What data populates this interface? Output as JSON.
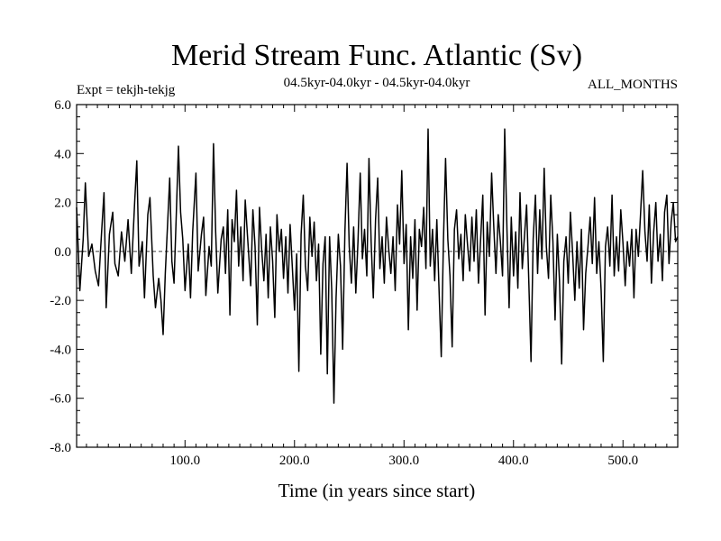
{
  "chart_data": {
    "type": "line",
    "title": "Merid Stream Func. Atlantic (Sv)",
    "subtitle": "04.5kyr-04.0kyr - 04.5kyr-04.0kyr",
    "annotations": {
      "left": "Expt = tekjh-tekjg",
      "right": "ALL_MONTHS"
    },
    "xlabel": "Time (in years since start)",
    "ylabel": "",
    "xlim": [
      1,
      550
    ],
    "ylim": [
      -8.0,
      6.0
    ],
    "x_ticks": [
      100,
      200,
      300,
      400,
      500
    ],
    "x_tick_labels": [
      "100.0",
      "200.0",
      "300.0",
      "400.0",
      "500.0"
    ],
    "y_ticks": [
      -8,
      -6,
      -4,
      -2,
      0,
      2,
      4,
      6
    ],
    "y_tick_labels": [
      "-8.0",
      "-6.0",
      "-4.0",
      "-2.0",
      "0.0",
      "2.0",
      "4.0",
      "6.0"
    ],
    "zero_line": "dashed",
    "grid": false,
    "legend": "none",
    "series": [
      {
        "color": "#000000",
        "points": [
          [
            1,
            1.8
          ],
          [
            4,
            -1.6
          ],
          [
            7,
            0.5
          ],
          [
            9,
            2.8
          ],
          [
            12,
            -0.2
          ],
          [
            15,
            0.3
          ],
          [
            18,
            -0.8
          ],
          [
            21,
            -1.4
          ],
          [
            24,
            0.9
          ],
          [
            26,
            2.4
          ],
          [
            28,
            -2.3
          ],
          [
            31,
            0.7
          ],
          [
            34,
            1.6
          ],
          [
            36,
            -0.5
          ],
          [
            39,
            -1.0
          ],
          [
            42,
            0.8
          ],
          [
            45,
            -0.4
          ],
          [
            48,
            1.3
          ],
          [
            51,
            -0.9
          ],
          [
            54,
            2.0
          ],
          [
            56,
            3.7
          ],
          [
            58,
            -0.6
          ],
          [
            61,
            0.4
          ],
          [
            63,
            -1.9
          ],
          [
            66,
            1.5
          ],
          [
            68,
            2.2
          ],
          [
            71,
            -1.0
          ],
          [
            73,
            -2.3
          ],
          [
            76,
            -1.1
          ],
          [
            78,
            -2.0
          ],
          [
            80,
            -3.4
          ],
          [
            82,
            -0.9
          ],
          [
            84,
            1.0
          ],
          [
            86,
            3.0
          ],
          [
            88,
            -0.4
          ],
          [
            90,
            -1.3
          ],
          [
            92,
            1.5
          ],
          [
            94,
            4.3
          ],
          [
            96,
            1.6
          ],
          [
            98,
            0.5
          ],
          [
            100,
            -1.6
          ],
          [
            103,
            0.3
          ],
          [
            105,
            -1.9
          ],
          [
            107,
            0.8
          ],
          [
            110,
            3.2
          ],
          [
            112,
            -0.8
          ],
          [
            115,
            0.7
          ],
          [
            117,
            1.4
          ],
          [
            119,
            -1.8
          ],
          [
            122,
            0.2
          ],
          [
            124,
            -0.6
          ],
          [
            126,
            4.4
          ],
          [
            128,
            0.8
          ],
          [
            130,
            -1.7
          ],
          [
            133,
            0.5
          ],
          [
            135,
            1.0
          ],
          [
            137,
            -0.9
          ],
          [
            139,
            1.7
          ],
          [
            141,
            -2.6
          ],
          [
            143,
            1.3
          ],
          [
            145,
            0.4
          ],
          [
            147,
            2.5
          ],
          [
            149,
            -0.6
          ],
          [
            151,
            1.0
          ],
          [
            153,
            -1.2
          ],
          [
            155,
            2.1
          ],
          [
            157,
            0.7
          ],
          [
            160,
            -1.4
          ],
          [
            162,
            1.7
          ],
          [
            164,
            0.2
          ],
          [
            166,
            -3.0
          ],
          [
            168,
            1.8
          ],
          [
            170,
            0.1
          ],
          [
            172,
            -1.2
          ],
          [
            174,
            0.7
          ],
          [
            176,
            -1.9
          ],
          [
            178,
            1.0
          ],
          [
            180,
            -0.4
          ],
          [
            182,
            -2.7
          ],
          [
            184,
            1.5
          ],
          [
            186,
            0.0
          ],
          [
            188,
            0.9
          ],
          [
            190,
            -1.1
          ],
          [
            192,
            0.6
          ],
          [
            194,
            -1.7
          ],
          [
            196,
            1.1
          ],
          [
            198,
            -0.6
          ],
          [
            200,
            -2.4
          ],
          [
            202,
            -0.1
          ],
          [
            204,
            -4.9
          ],
          [
            206,
            0.7
          ],
          [
            208,
            2.3
          ],
          [
            210,
            -0.6
          ],
          [
            212,
            -1.6
          ],
          [
            214,
            1.4
          ],
          [
            216,
            -0.2
          ],
          [
            218,
            1.2
          ],
          [
            220,
            -1.2
          ],
          [
            222,
            0.3
          ],
          [
            224,
            -4.2
          ],
          [
            226,
            -0.5
          ],
          [
            228,
            0.6
          ],
          [
            230,
            -5.0
          ],
          [
            232,
            0.6
          ],
          [
            234,
            -1.6
          ],
          [
            236,
            -6.2
          ],
          [
            238,
            -1.9
          ],
          [
            240,
            0.7
          ],
          [
            242,
            -0.6
          ],
          [
            244,
            -4.0
          ],
          [
            246,
            0.8
          ],
          [
            248,
            3.6
          ],
          [
            250,
            0.2
          ],
          [
            252,
            -1.3
          ],
          [
            254,
            1.0
          ],
          [
            256,
            -1.7
          ],
          [
            258,
            0.4
          ],
          [
            260,
            3.2
          ],
          [
            262,
            -0.3
          ],
          [
            264,
            0.9
          ],
          [
            266,
            -1.0
          ],
          [
            268,
            3.8
          ],
          [
            270,
            0.4
          ],
          [
            272,
            -1.9
          ],
          [
            274,
            1.3
          ],
          [
            276,
            3.0
          ],
          [
            278,
            -0.7
          ],
          [
            280,
            0.6
          ],
          [
            282,
            -1.3
          ],
          [
            284,
            1.4
          ],
          [
            286,
            0.1
          ],
          [
            288,
            -0.9
          ],
          [
            290,
            0.6
          ],
          [
            292,
            -1.6
          ],
          [
            294,
            1.9
          ],
          [
            296,
            0.3
          ],
          [
            298,
            3.3
          ],
          [
            300,
            -0.5
          ],
          [
            302,
            1.1
          ],
          [
            304,
            -3.2
          ],
          [
            306,
            0.6
          ],
          [
            308,
            -1.1
          ],
          [
            310,
            1.3
          ],
          [
            312,
            -2.4
          ],
          [
            314,
            0.9
          ],
          [
            316,
            0.2
          ],
          [
            318,
            1.8
          ],
          [
            320,
            -0.7
          ],
          [
            322,
            5.0
          ],
          [
            324,
            -0.6
          ],
          [
            326,
            0.9
          ],
          [
            328,
            -1.2
          ],
          [
            330,
            1.3
          ],
          [
            332,
            -1.5
          ],
          [
            334,
            -4.3
          ],
          [
            336,
            0.4
          ],
          [
            338,
            3.8
          ],
          [
            340,
            0.5
          ],
          [
            342,
            -1.0
          ],
          [
            344,
            -3.9
          ],
          [
            346,
            0.9
          ],
          [
            348,
            1.7
          ],
          [
            350,
            -0.3
          ],
          [
            352,
            0.7
          ],
          [
            354,
            -1.2
          ],
          [
            356,
            1.5
          ],
          [
            358,
            0.3
          ],
          [
            360,
            -0.8
          ],
          [
            362,
            1.4
          ],
          [
            364,
            -0.4
          ],
          [
            366,
            1.7
          ],
          [
            368,
            -1.3
          ],
          [
            370,
            0.5
          ],
          [
            372,
            2.3
          ],
          [
            374,
            -2.6
          ],
          [
            376,
            1.2
          ],
          [
            378,
            -0.2
          ],
          [
            380,
            3.2
          ],
          [
            382,
            1.0
          ],
          [
            384,
            -0.9
          ],
          [
            386,
            1.5
          ],
          [
            388,
            0.4
          ],
          [
            390,
            -1.0
          ],
          [
            392,
            5.0
          ],
          [
            394,
            0.9
          ],
          [
            396,
            -2.3
          ],
          [
            398,
            1.4
          ],
          [
            400,
            -1.0
          ],
          [
            402,
            0.8
          ],
          [
            404,
            -1.5
          ],
          [
            406,
            2.4
          ],
          [
            408,
            -0.7
          ],
          [
            410,
            0.6
          ],
          [
            412,
            1.9
          ],
          [
            414,
            -1.3
          ],
          [
            416,
            -4.5
          ],
          [
            418,
            0.5
          ],
          [
            420,
            2.3
          ],
          [
            422,
            -0.9
          ],
          [
            424,
            1.7
          ],
          [
            426,
            -0.3
          ],
          [
            428,
            3.4
          ],
          [
            430,
            0.2
          ],
          [
            432,
            -1.1
          ],
          [
            434,
            2.3
          ],
          [
            436,
            0.4
          ],
          [
            438,
            -2.8
          ],
          [
            440,
            0.7
          ],
          [
            442,
            -1.2
          ],
          [
            444,
            -4.6
          ],
          [
            446,
            -0.4
          ],
          [
            448,
            0.6
          ],
          [
            450,
            -1.3
          ],
          [
            452,
            1.6
          ],
          [
            454,
            -0.1
          ],
          [
            456,
            -2.0
          ],
          [
            458,
            0.4
          ],
          [
            460,
            -1.5
          ],
          [
            462,
            0.9
          ],
          [
            464,
            -3.2
          ],
          [
            466,
            -0.9
          ],
          [
            468,
            0.2
          ],
          [
            470,
            1.4
          ],
          [
            472,
            -0.5
          ],
          [
            474,
            2.2
          ],
          [
            476,
            -0.9
          ],
          [
            478,
            0.4
          ],
          [
            480,
            -1.6
          ],
          [
            482,
            -4.5
          ],
          [
            484,
            0.2
          ],
          [
            486,
            1.0
          ],
          [
            488,
            -0.6
          ],
          [
            490,
            2.3
          ],
          [
            492,
            -1.0
          ],
          [
            494,
            0.6
          ],
          [
            496,
            -0.8
          ],
          [
            498,
            1.7
          ],
          [
            500,
            0.3
          ],
          [
            502,
            -1.4
          ],
          [
            504,
            0.4
          ],
          [
            506,
            -0.6
          ],
          [
            508,
            0.9
          ],
          [
            510,
            -1.9
          ],
          [
            512,
            0.9
          ],
          [
            514,
            -0.2
          ],
          [
            516,
            1.5
          ],
          [
            518,
            3.3
          ],
          [
            520,
            0.8
          ],
          [
            522,
            -0.4
          ],
          [
            524,
            1.9
          ],
          [
            526,
            -1.3
          ],
          [
            528,
            0.8
          ],
          [
            530,
            2.0
          ],
          [
            532,
            -0.4
          ],
          [
            534,
            0.7
          ],
          [
            536,
            -1.2
          ],
          [
            538,
            1.6
          ],
          [
            540,
            2.3
          ],
          [
            542,
            -0.5
          ],
          [
            544,
            1.2
          ],
          [
            546,
            2.0
          ],
          [
            548,
            0.4
          ],
          [
            550,
            0.6
          ]
        ]
      }
    ]
  }
}
